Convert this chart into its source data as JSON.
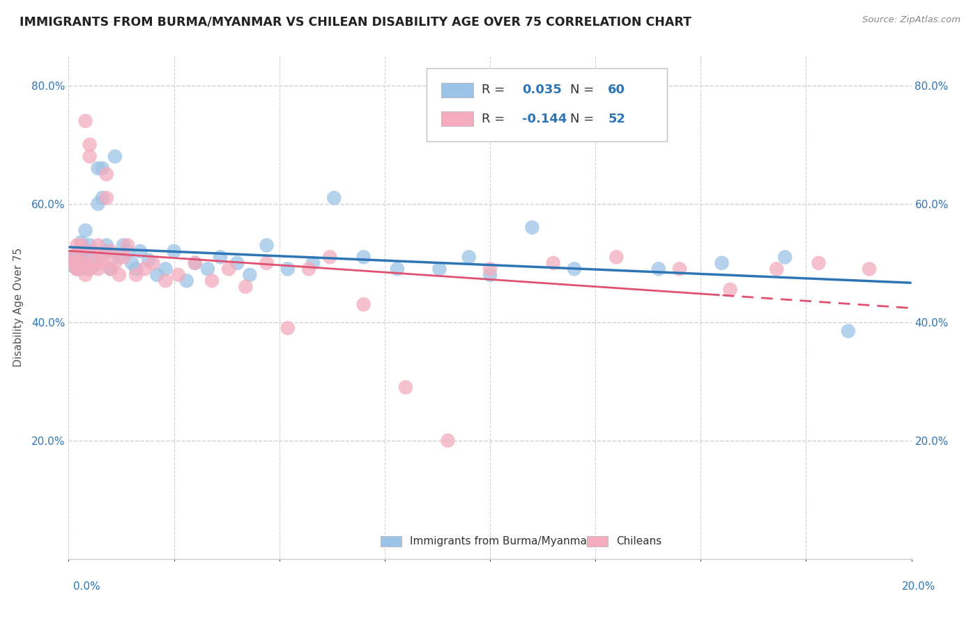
{
  "title": "IMMIGRANTS FROM BURMA/MYANMAR VS CHILEAN DISABILITY AGE OVER 75 CORRELATION CHART",
  "source": "Source: ZipAtlas.com",
  "ylabel": "Disability Age Over 75",
  "xlim": [
    0.0,
    0.2
  ],
  "ylim": [
    0.0,
    0.85
  ],
  "yticks": [
    0.2,
    0.4,
    0.6,
    0.8
  ],
  "ytick_labels": [
    "20.0%",
    "40.0%",
    "60.0%",
    "80.0%"
  ],
  "xtick_labels": [
    "0.0%",
    "20.0%"
  ],
  "blue_color": "#9dc3e6",
  "blue_line_color": "#2e75b6",
  "pink_color": "#f4acbe",
  "pink_line_color": "#e05070",
  "legend_blue_r_val": "0.035",
  "legend_blue_n_val": "60",
  "legend_pink_r_val": "-0.144",
  "legend_pink_n_val": "52",
  "legend_text_color": "#2e75b6",
  "r_label_color": "#333333",
  "background_color": "#ffffff",
  "grid_color": "#d0d0d0",
  "blue_scatter_x": [
    0.001,
    0.001,
    0.001,
    0.002,
    0.002,
    0.002,
    0.003,
    0.003,
    0.003,
    0.003,
    0.004,
    0.004,
    0.004,
    0.004,
    0.005,
    0.005,
    0.005,
    0.005,
    0.005,
    0.006,
    0.006,
    0.007,
    0.007,
    0.008,
    0.008,
    0.009,
    0.009,
    0.01,
    0.011,
    0.012,
    0.013,
    0.014,
    0.015,
    0.016,
    0.017,
    0.019,
    0.021,
    0.023,
    0.025,
    0.028,
    0.03,
    0.033,
    0.036,
    0.04,
    0.043,
    0.047,
    0.052,
    0.058,
    0.063,
    0.07,
    0.078,
    0.088,
    0.095,
    0.1,
    0.11,
    0.12,
    0.14,
    0.155,
    0.17,
    0.185
  ],
  "blue_scatter_y": [
    0.495,
    0.505,
    0.51,
    0.49,
    0.5,
    0.515,
    0.5,
    0.51,
    0.49,
    0.535,
    0.505,
    0.52,
    0.5,
    0.555,
    0.49,
    0.5,
    0.51,
    0.52,
    0.53,
    0.495,
    0.505,
    0.6,
    0.66,
    0.66,
    0.61,
    0.52,
    0.53,
    0.49,
    0.68,
    0.51,
    0.53,
    0.52,
    0.5,
    0.49,
    0.52,
    0.505,
    0.48,
    0.49,
    0.52,
    0.47,
    0.5,
    0.49,
    0.51,
    0.5,
    0.48,
    0.53,
    0.49,
    0.5,
    0.61,
    0.51,
    0.49,
    0.49,
    0.51,
    0.48,
    0.56,
    0.49,
    0.49,
    0.5,
    0.51,
    0.385
  ],
  "pink_scatter_x": [
    0.001,
    0.001,
    0.002,
    0.002,
    0.002,
    0.003,
    0.003,
    0.003,
    0.004,
    0.004,
    0.004,
    0.005,
    0.005,
    0.005,
    0.006,
    0.006,
    0.007,
    0.007,
    0.008,
    0.008,
    0.009,
    0.009,
    0.01,
    0.01,
    0.011,
    0.012,
    0.013,
    0.014,
    0.016,
    0.018,
    0.02,
    0.023,
    0.026,
    0.03,
    0.034,
    0.038,
    0.042,
    0.047,
    0.052,
    0.057,
    0.062,
    0.07,
    0.08,
    0.09,
    0.1,
    0.115,
    0.13,
    0.145,
    0.157,
    0.168,
    0.178,
    0.19
  ],
  "pink_scatter_y": [
    0.5,
    0.51,
    0.49,
    0.53,
    0.49,
    0.52,
    0.5,
    0.53,
    0.74,
    0.5,
    0.48,
    0.7,
    0.49,
    0.68,
    0.5,
    0.52,
    0.53,
    0.49,
    0.51,
    0.5,
    0.65,
    0.61,
    0.49,
    0.52,
    0.5,
    0.48,
    0.51,
    0.53,
    0.48,
    0.49,
    0.5,
    0.47,
    0.48,
    0.5,
    0.47,
    0.49,
    0.46,
    0.5,
    0.39,
    0.49,
    0.51,
    0.43,
    0.29,
    0.2,
    0.49,
    0.5,
    0.51,
    0.49,
    0.455,
    0.49,
    0.5,
    0.49
  ]
}
